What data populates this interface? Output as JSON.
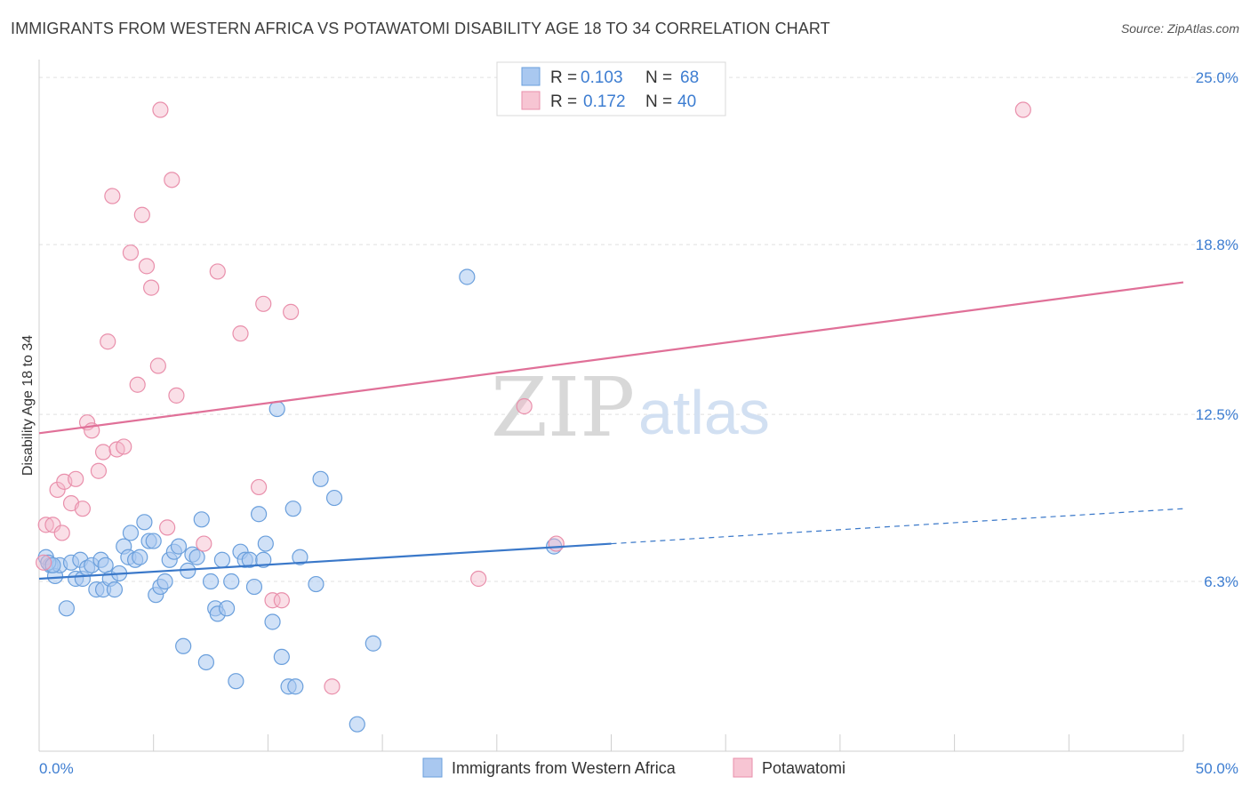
{
  "title": "IMMIGRANTS FROM WESTERN AFRICA VS POTAWATOMI DISABILITY AGE 18 TO 34 CORRELATION CHART",
  "source": "Source: ZipAtlas.com",
  "watermark": {
    "left": "ZIP",
    "right": "atlas"
  },
  "colors": {
    "blue": "#3a78c9",
    "blue_fill": "#a9c8f0",
    "pink": "#e07098",
    "pink_fill": "#f4b7c9",
    "tick": "#3d7dd1",
    "grid": "#e0e0e0"
  },
  "legend": {
    "rows": [
      {
        "r_label": "R =",
        "r_value": "0.103",
        "n_label": "N =",
        "n_value": "68",
        "color": "blue"
      },
      {
        "r_label": "R =",
        "r_value": "0.172",
        "n_label": "N =",
        "n_value": "40",
        "color": "pink"
      }
    ]
  },
  "bottom_legend": [
    {
      "label": "Immigrants from Western Africa",
      "color": "blue"
    },
    {
      "label": "Potawatomi",
      "color": "pink"
    }
  ],
  "chart_data": {
    "type": "scatter",
    "title": "IMMIGRANTS FROM WESTERN AFRICA VS POTAWATOMI DISABILITY AGE 18 TO 34 CORRELATION CHART",
    "xlabel": "",
    "ylabel": "Disability Age 18 to 34",
    "xlim": [
      0,
      50
    ],
    "ylim": [
      0,
      25.5
    ],
    "x_tick_labels": [
      "0.0%",
      "50.0%"
    ],
    "y_ticks": [
      6.3,
      12.5,
      18.8,
      25.0
    ],
    "y_tick_labels": [
      "6.3%",
      "12.5%",
      "18.8%",
      "25.0%"
    ],
    "series": [
      {
        "name": "Immigrants from Western Africa",
        "color": "blue",
        "R": 0.103,
        "N": 68,
        "trend": {
          "x0": 0,
          "y0": 6.4,
          "x1": 25,
          "y1": 7.7,
          "dashed_to_x": 50,
          "dashed_to_y": 9.0
        },
        "points": [
          [
            0.3,
            7.2
          ],
          [
            0.5,
            6.9
          ],
          [
            0.7,
            6.5
          ],
          [
            0.9,
            6.9
          ],
          [
            1.2,
            5.3
          ],
          [
            1.4,
            7.0
          ],
          [
            1.6,
            6.4
          ],
          [
            1.8,
            7.1
          ],
          [
            1.9,
            6.4
          ],
          [
            2.1,
            6.8
          ],
          [
            2.3,
            6.9
          ],
          [
            2.5,
            6.0
          ],
          [
            2.7,
            7.1
          ],
          [
            2.8,
            6.0
          ],
          [
            2.9,
            6.9
          ],
          [
            3.1,
            6.4
          ],
          [
            3.3,
            6.0
          ],
          [
            3.5,
            6.6
          ],
          [
            3.7,
            7.6
          ],
          [
            3.9,
            7.2
          ],
          [
            4.0,
            8.1
          ],
          [
            4.2,
            7.1
          ],
          [
            4.4,
            7.2
          ],
          [
            4.6,
            8.5
          ],
          [
            4.8,
            7.8
          ],
          [
            5.0,
            7.8
          ],
          [
            5.1,
            5.8
          ],
          [
            5.3,
            6.1
          ],
          [
            5.5,
            6.3
          ],
          [
            5.7,
            7.1
          ],
          [
            5.9,
            7.4
          ],
          [
            6.1,
            7.6
          ],
          [
            6.3,
            3.9
          ],
          [
            6.5,
            6.7
          ],
          [
            6.7,
            7.3
          ],
          [
            6.9,
            7.2
          ],
          [
            7.1,
            8.6
          ],
          [
            7.3,
            3.3
          ],
          [
            7.5,
            6.3
          ],
          [
            7.7,
            5.3
          ],
          [
            7.8,
            5.1
          ],
          [
            8.0,
            7.1
          ],
          [
            8.2,
            5.3
          ],
          [
            8.4,
            6.3
          ],
          [
            8.6,
            2.6
          ],
          [
            8.8,
            7.4
          ],
          [
            9.0,
            7.1
          ],
          [
            9.2,
            7.1
          ],
          [
            9.4,
            6.1
          ],
          [
            9.6,
            8.8
          ],
          [
            9.8,
            7.1
          ],
          [
            9.9,
            7.7
          ],
          [
            10.2,
            4.8
          ],
          [
            10.4,
            12.7
          ],
          [
            10.6,
            3.5
          ],
          [
            10.9,
            2.4
          ],
          [
            11.1,
            9.0
          ],
          [
            11.2,
            2.4
          ],
          [
            11.4,
            7.2
          ],
          [
            12.1,
            6.2
          ],
          [
            12.3,
            10.1
          ],
          [
            12.9,
            9.4
          ],
          [
            13.9,
            1.0
          ],
          [
            14.6,
            4.0
          ],
          [
            18.7,
            17.6
          ],
          [
            22.5,
            7.6
          ],
          [
            0.4,
            7.0
          ],
          [
            0.6,
            6.9
          ]
        ]
      },
      {
        "name": "Potawatomi",
        "color": "pink",
        "R": 0.172,
        "N": 40,
        "trend": {
          "x0": 0,
          "y0": 11.8,
          "x1": 50,
          "y1": 17.4
        },
        "points": [
          [
            0.3,
            8.4
          ],
          [
            0.6,
            8.4
          ],
          [
            0.8,
            9.7
          ],
          [
            1.0,
            8.1
          ],
          [
            1.1,
            10.0
          ],
          [
            1.4,
            9.2
          ],
          [
            1.6,
            10.1
          ],
          [
            1.9,
            9.0
          ],
          [
            2.1,
            12.2
          ],
          [
            2.3,
            11.9
          ],
          [
            2.6,
            10.4
          ],
          [
            2.8,
            11.1
          ],
          [
            3.0,
            15.2
          ],
          [
            3.2,
            20.6
          ],
          [
            3.4,
            11.2
          ],
          [
            3.7,
            11.3
          ],
          [
            4.0,
            18.5
          ],
          [
            4.3,
            13.6
          ],
          [
            4.5,
            19.9
          ],
          [
            4.7,
            18.0
          ],
          [
            4.9,
            17.2
          ],
          [
            5.2,
            14.3
          ],
          [
            5.3,
            23.8
          ],
          [
            5.6,
            8.3
          ],
          [
            5.8,
            21.2
          ],
          [
            6.0,
            13.2
          ],
          [
            7.2,
            7.7
          ],
          [
            7.8,
            17.8
          ],
          [
            8.8,
            15.5
          ],
          [
            9.6,
            9.8
          ],
          [
            9.8,
            16.6
          ],
          [
            10.2,
            5.6
          ],
          [
            10.6,
            5.6
          ],
          [
            11.0,
            16.3
          ],
          [
            12.8,
            2.4
          ],
          [
            19.2,
            6.4
          ],
          [
            21.2,
            12.8
          ],
          [
            22.6,
            7.7
          ],
          [
            43.0,
            23.8
          ],
          [
            0.2,
            7.0
          ]
        ]
      }
    ]
  }
}
